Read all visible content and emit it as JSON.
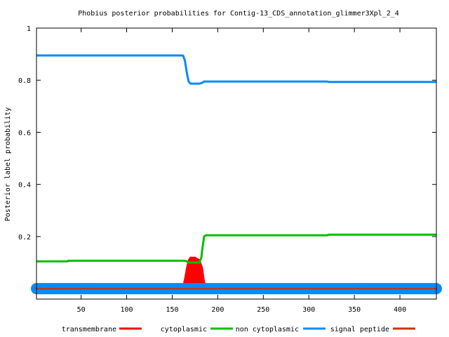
{
  "chart_data": {
    "type": "line",
    "title": "Phobius posterior probabilities for Contig-13_CDS_annotation_glimmer3Xpl_2_4",
    "xlabel": "",
    "ylabel": "Posterior label probability",
    "xlim": [
      1,
      440
    ],
    "ylim": [
      -0.04,
      1
    ],
    "x_ticks": [
      50,
      100,
      150,
      200,
      250,
      300,
      350,
      400
    ],
    "y_ticks": [
      0.2,
      0.4,
      0.6,
      0.8,
      1
    ],
    "y_tick_labels": [
      "0.2",
      "0.4",
      "0.6",
      "0.8",
      "1"
    ],
    "legend_position": "bottom",
    "series": [
      {
        "name": "transmembrane",
        "color": "#ff0000",
        "style": "filled-area",
        "x": [
          1,
          160,
          162,
          164,
          166,
          168,
          170,
          175,
          180,
          183,
          185,
          187,
          200,
          440
        ],
        "y": [
          0,
          0,
          0.01,
          0.04,
          0.08,
          0.11,
          0.12,
          0.12,
          0.11,
          0.08,
          0.03,
          0,
          0,
          0
        ]
      },
      {
        "name": "cytoplasmic",
        "color": "#00c000",
        "x": [
          1,
          35,
          36,
          160,
          162,
          164,
          166,
          168,
          170,
          175,
          180,
          182,
          183,
          185,
          187,
          320,
          322,
          440
        ],
        "y": [
          0.105,
          0.105,
          0.107,
          0.107,
          0.107,
          0.107,
          0.105,
          0.1,
          0.1,
          0.1,
          0.1,
          0.12,
          0.15,
          0.2,
          0.205,
          0.205,
          0.207,
          0.207
        ]
      },
      {
        "name": "non cytoplasmic",
        "color": "#008bff",
        "x": [
          1,
          160,
          162,
          164,
          166,
          168,
          170,
          175,
          180,
          183,
          185,
          187,
          320,
          322,
          440
        ],
        "y": [
          0.895,
          0.895,
          0.894,
          0.875,
          0.83,
          0.795,
          0.787,
          0.787,
          0.787,
          0.79,
          0.795,
          0.795,
          0.795,
          0.793,
          0.793
        ]
      },
      {
        "name": "signal peptide",
        "color": "#cc3300",
        "x": [
          1,
          440
        ],
        "y": [
          0,
          0
        ]
      }
    ]
  }
}
